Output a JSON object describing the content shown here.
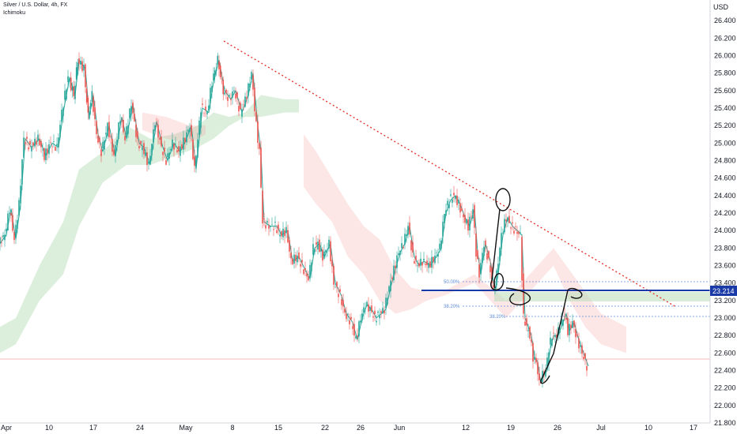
{
  "header": {
    "title": "Silver / U.S. Dollar, 4h, FX",
    "indicator": "Ichimoku"
  },
  "chart_data": {
    "type": "candlestick",
    "currency": "USD",
    "last_price": "23.214",
    "ylim": [
      21.8,
      26.6
    ],
    "yticks": [
      "26.400",
      "26.200",
      "26.000",
      "25.800",
      "25.600",
      "25.400",
      "25.200",
      "25.000",
      "24.800",
      "24.600",
      "24.400",
      "24.200",
      "24.000",
      "23.800",
      "23.600",
      "23.400",
      "23.200",
      "23.000",
      "22.800",
      "22.600",
      "22.400",
      "22.200",
      "22.000",
      "21.800"
    ],
    "x_labels": [
      "Apr",
      "10",
      "17",
      "24",
      "May",
      "8",
      "15",
      "22",
      "26",
      "Jun",
      "12",
      "19",
      "26",
      "Jul",
      "10",
      "17"
    ],
    "fib_labels": [
      "50.00%",
      "38.20%",
      "38.20%"
    ],
    "price": [
      [
        0,
        23.85
      ],
      [
        8,
        23.95
      ],
      [
        14,
        24.25
      ],
      [
        20,
        23.9
      ],
      [
        26,
        24.3
      ],
      [
        32,
        25.05
      ],
      [
        40,
        24.95
      ],
      [
        50,
        25.05
      ],
      [
        58,
        24.85
      ],
      [
        66,
        25.0
      ],
      [
        74,
        24.95
      ],
      [
        80,
        25.35
      ],
      [
        88,
        25.75
      ],
      [
        95,
        25.55
      ],
      [
        100,
        25.95
      ],
      [
        108,
        25.85
      ],
      [
        113,
        25.3
      ],
      [
        118,
        25.55
      ],
      [
        124,
        25.1
      ],
      [
        130,
        24.9
      ],
      [
        138,
        25.2
      ],
      [
        146,
        24.85
      ],
      [
        154,
        25.3
      ],
      [
        160,
        25.05
      ],
      [
        168,
        25.45
      ],
      [
        176,
        25.0
      ],
      [
        182,
        24.95
      ],
      [
        190,
        24.75
      ],
      [
        198,
        25.25
      ],
      [
        206,
        24.95
      ],
      [
        212,
        24.8
      ],
      [
        220,
        25.0
      ],
      [
        228,
        24.9
      ],
      [
        236,
        25.05
      ],
      [
        242,
        25.2
      ],
      [
        248,
        24.7
      ],
      [
        256,
        25.4
      ],
      [
        264,
        25.35
      ],
      [
        270,
        25.7
      ],
      [
        277,
        25.95
      ],
      [
        284,
        25.6
      ],
      [
        292,
        25.5
      ],
      [
        298,
        25.6
      ],
      [
        306,
        25.35
      ],
      [
        314,
        25.55
      ],
      [
        320,
        25.8
      ],
      [
        326,
        25.2
      ],
      [
        330,
        24.9
      ],
      [
        334,
        24.1
      ],
      [
        342,
        24.05
      ],
      [
        350,
        24.05
      ],
      [
        356,
        23.95
      ],
      [
        364,
        24.0
      ],
      [
        370,
        23.65
      ],
      [
        378,
        23.7
      ],
      [
        386,
        23.55
      ],
      [
        392,
        23.45
      ],
      [
        398,
        23.8
      ],
      [
        404,
        23.85
      ],
      [
        410,
        23.7
      ],
      [
        418,
        23.85
      ],
      [
        424,
        23.4
      ],
      [
        432,
        23.25
      ],
      [
        438,
        23.05
      ],
      [
        446,
        22.95
      ],
      [
        452,
        22.75
      ],
      [
        458,
        23.0
      ],
      [
        464,
        23.15
      ],
      [
        470,
        23.1
      ],
      [
        476,
        23.0
      ],
      [
        482,
        23.05
      ],
      [
        488,
        23.1
      ],
      [
        494,
        23.35
      ],
      [
        500,
        23.55
      ],
      [
        506,
        23.75
      ],
      [
        512,
        23.85
      ],
      [
        518,
        24.05
      ],
      [
        524,
        23.7
      ],
      [
        530,
        23.6
      ],
      [
        536,
        23.65
      ],
      [
        544,
        23.6
      ],
      [
        552,
        23.7
      ],
      [
        558,
        23.8
      ],
      [
        564,
        24.2
      ],
      [
        570,
        24.35
      ],
      [
        576,
        24.4
      ],
      [
        582,
        24.3
      ],
      [
        588,
        24.15
      ],
      [
        594,
        24.05
      ],
      [
        600,
        24.25
      ],
      [
        604,
        23.75
      ],
      [
        608,
        23.5
      ],
      [
        614,
        23.85
      ],
      [
        620,
        23.65
      ],
      [
        626,
        23.3
      ],
      [
        630,
        23.5
      ],
      [
        636,
        23.95
      ],
      [
        642,
        24.15
      ],
      [
        648,
        24.05
      ],
      [
        654,
        24.0
      ],
      [
        660,
        23.95
      ],
      [
        664,
        23.0
      ],
      [
        668,
        22.9
      ],
      [
        672,
        22.8
      ],
      [
        676,
        22.55
      ],
      [
        680,
        22.5
      ],
      [
        684,
        22.25
      ],
      [
        688,
        22.35
      ],
      [
        692,
        22.4
      ],
      [
        696,
        22.65
      ],
      [
        700,
        22.8
      ],
      [
        706,
        22.8
      ],
      [
        712,
        22.95
      ],
      [
        716,
        23.05
      ],
      [
        720,
        22.85
      ],
      [
        726,
        22.95
      ],
      [
        732,
        22.75
      ],
      [
        738,
        22.6
      ],
      [
        744,
        22.45
      ]
    ],
    "cloud": [
      [
        0,
        22.6,
        22.9
      ],
      [
        20,
        22.7,
        23.0
      ],
      [
        50,
        23.2,
        23.6
      ],
      [
        80,
        23.5,
        24.1
      ],
      [
        100,
        24.05,
        24.7
      ],
      [
        130,
        24.55,
        24.9
      ],
      [
        160,
        24.75,
        25.2
      ],
      [
        190,
        24.75,
        25.05
      ],
      [
        220,
        24.85,
        25.1
      ],
      [
        250,
        24.95,
        25.2
      ],
      [
        270,
        25.05,
        25.35
      ],
      [
        290,
        25.2,
        25.3
      ],
      [
        310,
        25.3,
        25.35
      ],
      [
        330,
        25.3,
        25.55
      ],
      [
        360,
        25.35,
        25.5
      ],
      [
        378,
        25.35,
        25.5
      ]
    ],
    "cloud_red": [
      [
        180,
        25.15,
        25.35
      ],
      [
        210,
        25.05,
        25.3
      ],
      [
        240,
        25.0,
        25.2
      ],
      [
        260,
        25.1,
        25.2
      ],
      [
        384,
        24.5,
        25.1
      ],
      [
        400,
        24.3,
        24.9
      ],
      [
        420,
        24.1,
        24.6
      ],
      [
        440,
        23.7,
        24.3
      ],
      [
        460,
        23.5,
        24.05
      ],
      [
        480,
        23.2,
        23.9
      ],
      [
        500,
        23.05,
        23.55
      ],
      [
        520,
        23.1,
        23.35
      ],
      [
        540,
        23.2,
        23.3
      ],
      [
        560,
        23.25,
        23.3
      ],
      [
        600,
        23.4,
        23.5
      ],
      [
        640,
        23.0,
        23.2
      ],
      [
        700,
        23.6,
        23.8
      ],
      [
        720,
        23.2,
        23.55
      ],
      [
        740,
        22.9,
        23.3
      ],
      [
        760,
        22.7,
        23.05
      ],
      [
        792,
        22.6,
        22.9
      ]
    ]
  }
}
